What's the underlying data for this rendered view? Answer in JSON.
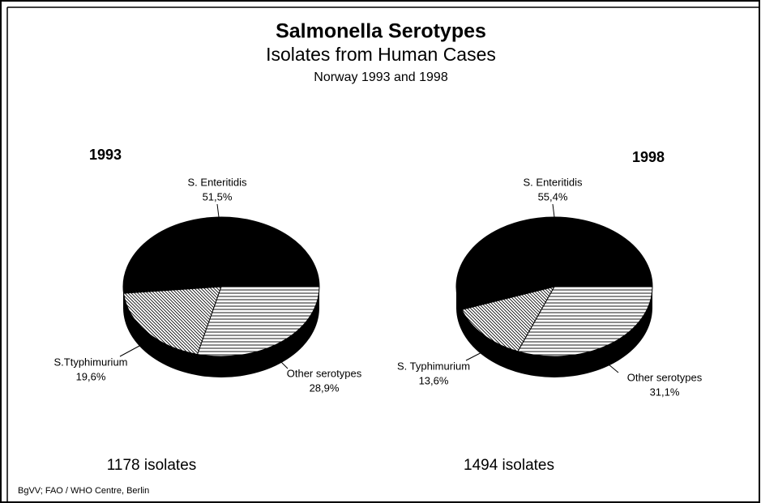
{
  "header": {
    "title": "Salmonella Serotypes",
    "subtitle": "Isolates from Human Cases",
    "subsubtitle": "Norway 1993 and 1998"
  },
  "footer": "BgVV; FAO / WHO Centre, Berlin",
  "chart_data": [
    {
      "type": "pie",
      "title": "1993",
      "note": "1178 isolates",
      "categories": [
        "S. Enteritidis",
        "S.Ttyphimurium",
        "Other serotypes"
      ],
      "values": [
        51.5,
        19.6,
        28.9
      ],
      "value_labels": [
        "51,5%",
        "19,6%",
        "28,9%"
      ],
      "colors": [
        "#000000",
        "#000000",
        "#000000"
      ],
      "patterns": [
        "solid",
        "diagonal",
        "horizontal"
      ]
    },
    {
      "type": "pie",
      "title": "1998",
      "note": "1494 isolates",
      "categories": [
        "S. Enteritidis",
        "S. Typhimurium",
        "Other serotypes"
      ],
      "values": [
        55.4,
        13.6,
        31.1
      ],
      "value_labels": [
        "55,4%",
        "13,6%",
        "31,1%"
      ],
      "colors": [
        "#000000",
        "#000000",
        "#000000"
      ],
      "patterns": [
        "solid",
        "diagonal",
        "horizontal"
      ]
    }
  ]
}
